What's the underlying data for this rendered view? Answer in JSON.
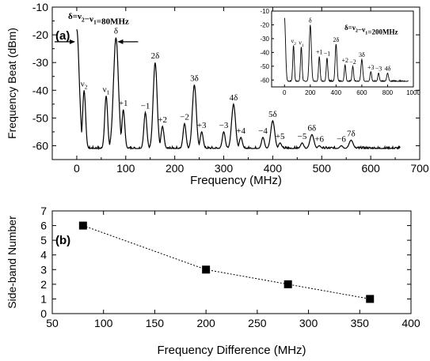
{
  "chart_data": [
    {
      "id": "a",
      "type": "line",
      "panel_label": "(a)",
      "xlabel": "Frequency (MHz)",
      "ylabel": "Frequency Beat (dBm)",
      "xlim": [
        -50,
        700
      ],
      "ylim": [
        -65,
        -10
      ],
      "xticks": [
        0,
        100,
        200,
        300,
        400,
        500,
        600,
        700
      ],
      "yticks": [
        -10,
        -20,
        -30,
        -40,
        -50,
        -60
      ],
      "baseline": -61,
      "x_end": 660,
      "peaks": [
        {
          "x": 0,
          "y": -18,
          "label": "",
          "w": 5
        },
        {
          "x": 15,
          "y": -40,
          "label": "ν2",
          "w": 3
        },
        {
          "x": 60,
          "y": -42,
          "label": "ν1",
          "w": 3
        },
        {
          "x": 80,
          "y": -21,
          "label": "δ",
          "w": 5
        },
        {
          "x": 95,
          "y": -47,
          "label": "+1",
          "w": 3
        },
        {
          "x": 140,
          "y": -48,
          "label": "−1",
          "w": 3
        },
        {
          "x": 160,
          "y": -30,
          "label": "2δ",
          "w": 4
        },
        {
          "x": 175,
          "y": -53,
          "label": "+2",
          "w": 3
        },
        {
          "x": 220,
          "y": -52,
          "label": "−2",
          "w": 3
        },
        {
          "x": 240,
          "y": -38,
          "label": "3δ",
          "w": 4
        },
        {
          "x": 255,
          "y": -55,
          "label": "+3",
          "w": 3
        },
        {
          "x": 300,
          "y": -55,
          "label": "−3",
          "w": 3
        },
        {
          "x": 320,
          "y": -45,
          "label": "4δ",
          "w": 4
        },
        {
          "x": 335,
          "y": -57,
          "label": "+4",
          "w": 3
        },
        {
          "x": 380,
          "y": -57,
          "label": "−4",
          "w": 3
        },
        {
          "x": 400,
          "y": -51,
          "label": "5δ",
          "w": 4
        },
        {
          "x": 415,
          "y": -59,
          "label": "+5",
          "w": 3
        },
        {
          "x": 460,
          "y": -59,
          "label": "−5",
          "w": 3
        },
        {
          "x": 480,
          "y": -56,
          "label": "6δ",
          "w": 4
        },
        {
          "x": 495,
          "y": -60,
          "label": "+6",
          "w": 3
        },
        {
          "x": 540,
          "y": -60,
          "label": "−6",
          "w": 3
        },
        {
          "x": 560,
          "y": -58,
          "label": "7δ",
          "w": 4
        }
      ],
      "annotation": "δ=ν2−ν1=80MHz",
      "inset": {
        "type": "line",
        "xlim": [
          -100,
          1000
        ],
        "ylim": [
          -65,
          -10
        ],
        "xticks": [
          0,
          200,
          400,
          600,
          800,
          1000
        ],
        "yticks": [
          -10,
          -20,
          -30,
          -40,
          -50,
          -60
        ],
        "baseline": -61,
        "x_end": 960,
        "annotation": "δ=ν2−ν1=200MHz",
        "peaks": [
          {
            "x": 0,
            "y": -15,
            "label": "",
            "w": 8
          },
          {
            "x": 70,
            "y": -35,
            "label": "ν2",
            "w": 6
          },
          {
            "x": 130,
            "y": -36,
            "label": "ν1",
            "w": 6
          },
          {
            "x": 200,
            "y": -20,
            "label": "δ",
            "w": 8
          },
          {
            "x": 270,
            "y": -43,
            "label": "+1",
            "w": 6
          },
          {
            "x": 330,
            "y": -44,
            "label": "−1",
            "w": 6
          },
          {
            "x": 400,
            "y": -34,
            "label": "2δ",
            "w": 7
          },
          {
            "x": 470,
            "y": -49,
            "label": "+2",
            "w": 6
          },
          {
            "x": 530,
            "y": -50,
            "label": "−2",
            "w": 6
          },
          {
            "x": 600,
            "y": -45,
            "label": "3δ",
            "w": 7
          },
          {
            "x": 670,
            "y": -54,
            "label": "+3",
            "w": 6
          },
          {
            "x": 730,
            "y": -55,
            "label": "−3",
            "w": 6
          },
          {
            "x": 800,
            "y": -55,
            "label": "4δ",
            "w": 7
          }
        ]
      }
    },
    {
      "id": "b",
      "type": "scatter",
      "panel_label": "(b)",
      "xlabel": "Frequency Difference (MHz)",
      "ylabel": "Side-band Number",
      "xlim": [
        50,
        400
      ],
      "ylim": [
        0,
        7
      ],
      "xticks": [
        50,
        100,
        150,
        200,
        250,
        300,
        350,
        400
      ],
      "yticks": [
        0,
        1,
        2,
        3,
        4,
        5,
        6,
        7
      ],
      "x": [
        80,
        200,
        280,
        360
      ],
      "y": [
        6,
        3,
        2,
        1
      ],
      "line_style": "dashed"
    }
  ]
}
